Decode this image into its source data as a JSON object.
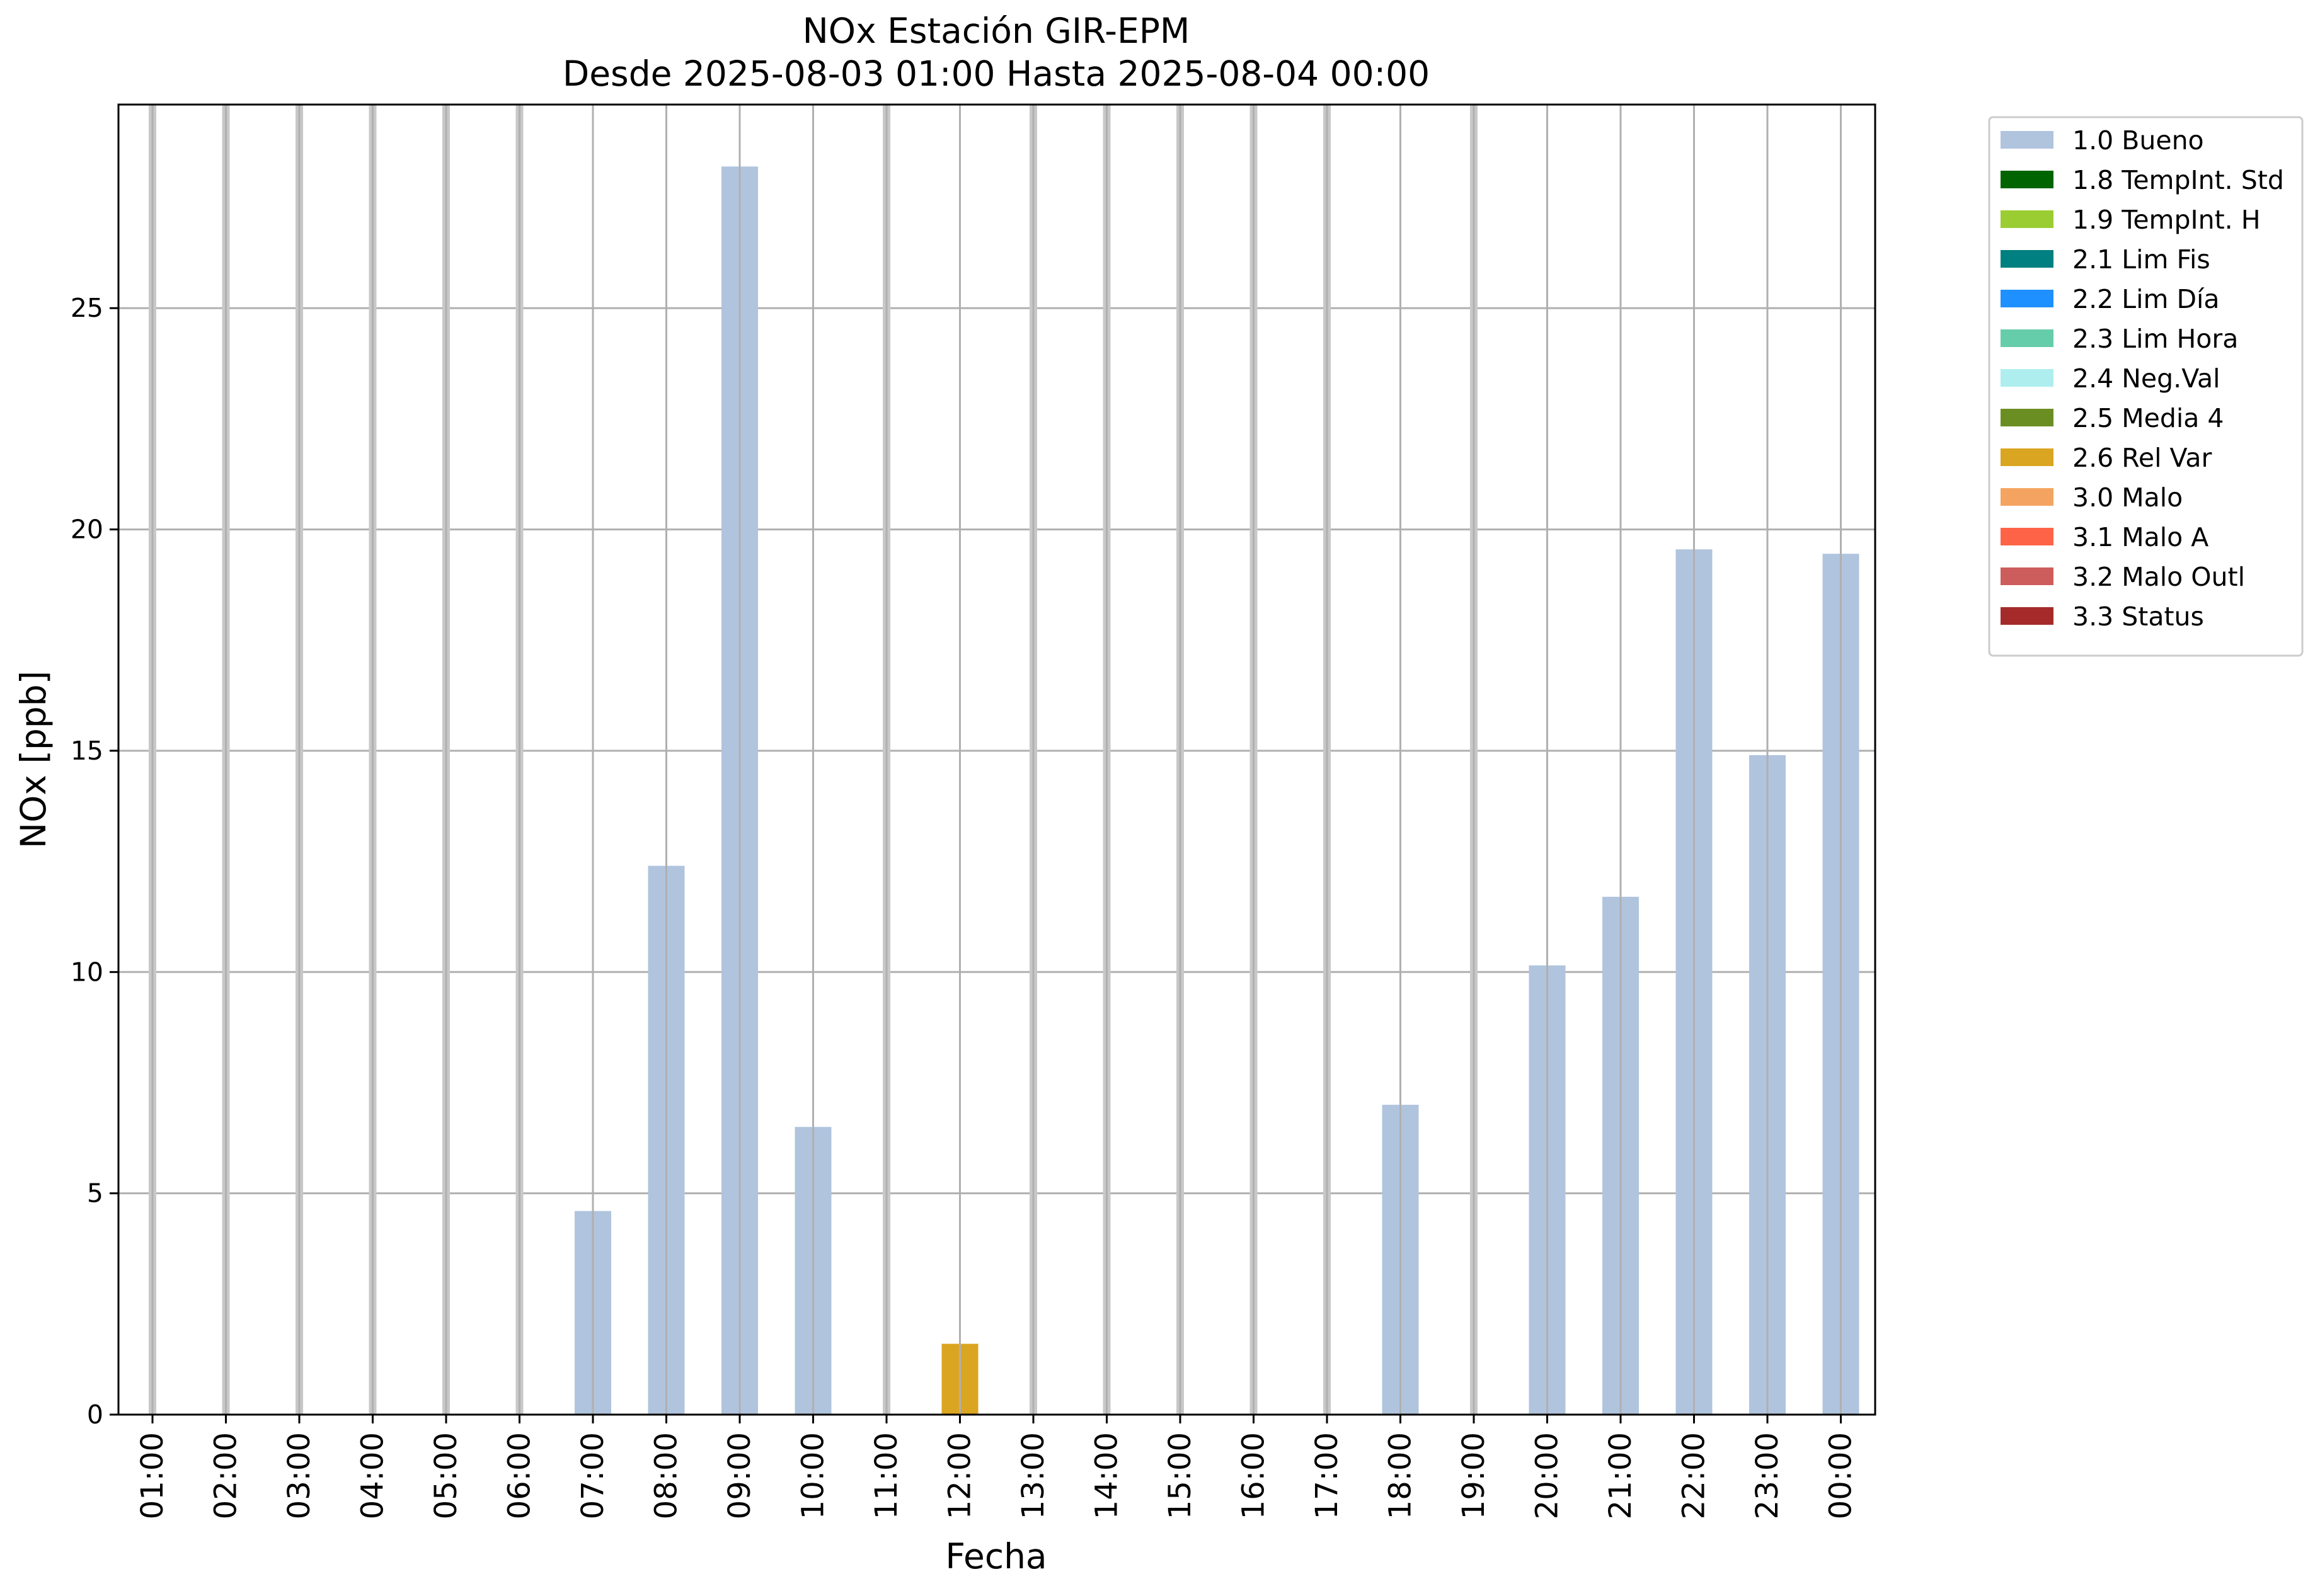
{
  "chart_data": {
    "type": "bar",
    "title": "NOx Estación GIR-EPM",
    "subtitle": "Desde 2025-08-03 01:00 Hasta 2025-08-04 00:00",
    "xlabel": "Fecha",
    "ylabel": "NOx [ppb]",
    "ylim": [
      0,
      29.6
    ],
    "yticks": [
      0,
      5,
      10,
      15,
      20,
      25
    ],
    "grid": true,
    "legend_position": "outside-top-right",
    "categories": [
      "01:00",
      "02:00",
      "03:00",
      "04:00",
      "05:00",
      "06:00",
      "07:00",
      "08:00",
      "09:00",
      "10:00",
      "11:00",
      "12:00",
      "13:00",
      "14:00",
      "15:00",
      "16:00",
      "17:00",
      "18:00",
      "19:00",
      "20:00",
      "21:00",
      "22:00",
      "23:00",
      "00:00"
    ],
    "values": [
      null,
      null,
      null,
      null,
      null,
      null,
      4.6,
      12.4,
      28.2,
      6.5,
      null,
      1.6,
      null,
      null,
      null,
      null,
      null,
      7.0,
      null,
      10.15,
      11.7,
      19.55,
      14.9,
      19.45
    ],
    "quality": [
      "missing",
      "missing",
      "missing",
      "missing",
      "missing",
      "missing",
      "1.0 Bueno",
      "1.0 Bueno",
      "1.0 Bueno",
      "1.0 Bueno",
      "missing",
      "2.6 Rel Var",
      "missing",
      "missing",
      "missing",
      "missing",
      "missing",
      "1.0 Bueno",
      "missing",
      "1.0 Bueno",
      "1.0 Bueno",
      "1.0 Bueno",
      "1.0 Bueno",
      "1.0 Bueno"
    ],
    "missing_marker_color": "#c8c8c8",
    "legend": [
      {
        "label": "1.0 Bueno",
        "color": "#b0c4de"
      },
      {
        "label": "1.8 TempInt. Std",
        "color": "#006400"
      },
      {
        "label": "1.9 TempInt. H",
        "color": "#9acd32"
      },
      {
        "label": "2.1 Lim Fis",
        "color": "#008080"
      },
      {
        "label": "2.2 Lim Día",
        "color": "#1e90ff"
      },
      {
        "label": "2.3 Lim Hora",
        "color": "#66cdaa"
      },
      {
        "label": "2.4 Neg.Val",
        "color": "#afeeee"
      },
      {
        "label": "2.5 Media 4",
        "color": "#6b8e23"
      },
      {
        "label": "2.6 Rel Var",
        "color": "#daa520"
      },
      {
        "label": "3.0 Malo",
        "color": "#f4a460"
      },
      {
        "label": "3.1 Malo A",
        "color": "#ff6347"
      },
      {
        "label": "3.2 Malo Outl",
        "color": "#cd5c5c"
      },
      {
        "label": "3.3 Status",
        "color": "#a52a2a"
      }
    ]
  }
}
